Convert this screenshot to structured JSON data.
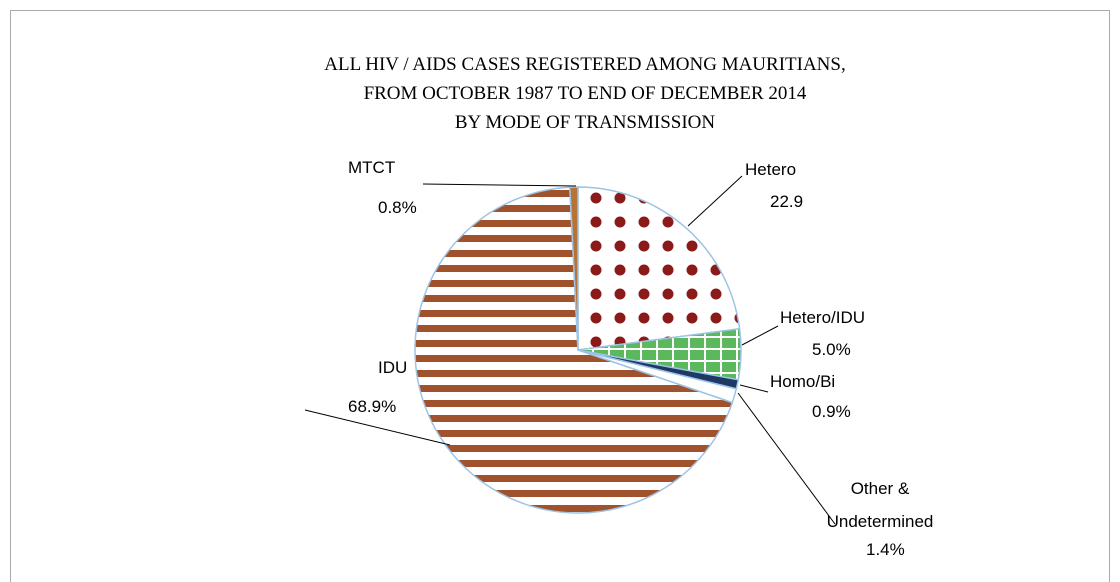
{
  "chart_data": {
    "type": "pie",
    "title": [
      "ALL  HIV / AIDS  CASES  REGISTERED  AMONG  MAURITIANS,",
      "FROM  OCTOBER 1987 TO  END OF DECEMBER  2014",
      "BY MODE OF TRANSMISSION"
    ],
    "categories": [
      "Hetero",
      "Hetero/IDU",
      "Homo/Bi",
      "Other & Undetermined",
      "IDU",
      "MTCT"
    ],
    "values": [
      22.9,
      5.0,
      0.9,
      1.4,
      68.9,
      0.8
    ],
    "value_labels": [
      "22.9",
      "5.0%",
      "0.9%",
      "1.4%",
      "68.9%",
      "0.8%"
    ],
    "colors": [
      "#8b1a1a",
      "#5cb85c",
      "#1f3864",
      "#ffffff",
      "#a0522d",
      "#b87333"
    ]
  }
}
